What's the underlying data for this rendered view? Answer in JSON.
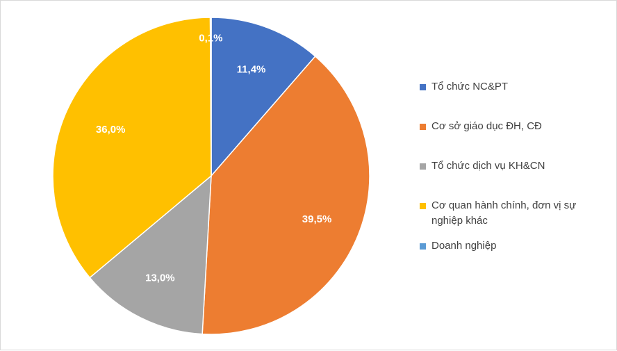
{
  "chart_data": {
    "type": "pie",
    "categories": [
      "Tổ chức NC&PT",
      "Cơ sở giáo dục ĐH, CĐ",
      "Tổ chức dịch vụ KH&CN",
      "Cơ quan hành chính, đơn vị sự nghiệp khác",
      "Doanh nghiệp"
    ],
    "values": [
      11.4,
      39.5,
      13.0,
      36.0,
      0.1
    ],
    "value_labels": [
      "11,4%",
      "39,5%",
      "13,0%",
      "36,0%",
      "0,1%"
    ],
    "colors": [
      "#4472c4",
      "#ed7d31",
      "#a5a5a5",
      "#ffc000",
      "#5b9bd5"
    ],
    "unit": "%",
    "legend_position": "right",
    "start_angle": "12 o'clock, clockwise"
  }
}
